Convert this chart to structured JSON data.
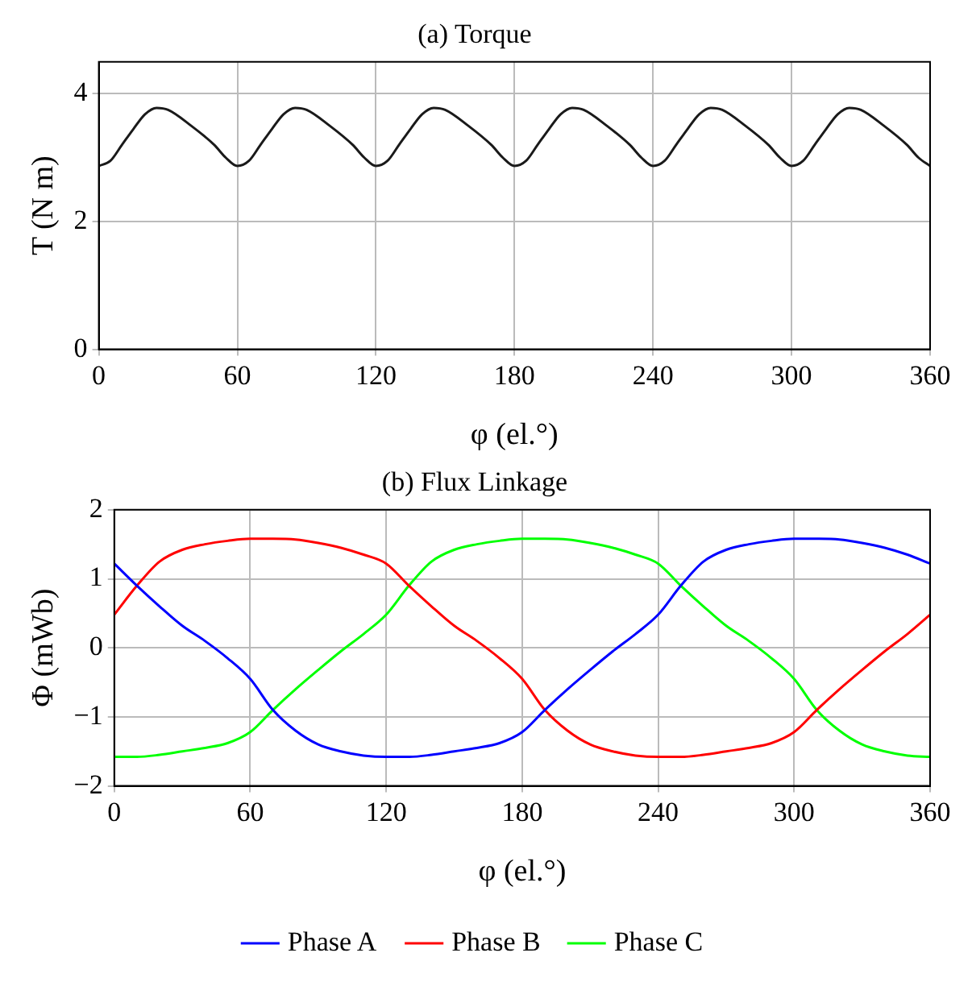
{
  "chart_data": [
    {
      "type": "line",
      "title": "(a) Torque",
      "xlabel": "φ (el.°)",
      "ylabel": "T (N m)",
      "xlim": [
        0,
        360
      ],
      "xticks": [
        0,
        60,
        120,
        180,
        240,
        300,
        360
      ],
      "ylim": [
        0,
        4.5
      ],
      "yticks": [
        0,
        2,
        4
      ],
      "grid": true,
      "legend": false,
      "marker": "none",
      "line_style": "solid",
      "x": [
        0,
        5,
        10,
        15,
        20,
        25,
        30,
        40,
        50,
        55,
        60,
        65,
        70,
        75,
        80,
        85,
        90,
        100,
        110,
        115,
        120,
        125,
        130,
        135,
        140,
        145,
        150,
        160,
        170,
        175,
        180,
        185,
        190,
        195,
        200,
        205,
        210,
        220,
        230,
        235,
        240,
        245,
        250,
        255,
        260,
        265,
        270,
        280,
        290,
        295,
        300,
        305,
        310,
        315,
        320,
        325,
        330,
        340,
        350,
        355,
        360
      ],
      "series": [
        {
          "color": "#1a1a1a",
          "values": [
            2.87,
            2.95,
            3.2,
            3.45,
            3.68,
            3.78,
            3.75,
            3.5,
            3.2,
            3.0,
            2.87,
            2.95,
            3.2,
            3.45,
            3.68,
            3.78,
            3.75,
            3.5,
            3.2,
            3.0,
            2.87,
            2.95,
            3.2,
            3.45,
            3.68,
            3.78,
            3.75,
            3.5,
            3.2,
            3.0,
            2.87,
            2.95,
            3.2,
            3.45,
            3.68,
            3.78,
            3.75,
            3.5,
            3.2,
            3.0,
            2.87,
            2.95,
            3.2,
            3.45,
            3.68,
            3.78,
            3.75,
            3.5,
            3.2,
            3.0,
            2.87,
            2.95,
            3.2,
            3.45,
            3.68,
            3.78,
            3.75,
            3.5,
            3.2,
            3.0,
            2.87
          ]
        }
      ]
    },
    {
      "type": "line",
      "title": "(b) Flux Linkage",
      "xlabel": "φ (el.°)",
      "ylabel": "Φ (mWb)",
      "xlim": [
        0,
        360
      ],
      "xticks": [
        0,
        60,
        120,
        180,
        240,
        300,
        360
      ],
      "ylim": [
        -2,
        2
      ],
      "yticks": [
        {
          "value": -2,
          "label": "−2"
        },
        {
          "value": -1,
          "label": "−1"
        },
        0,
        1,
        2
      ],
      "grid": true,
      "legend": "bottom",
      "marker": "none",
      "line_style": "solid",
      "x": [
        0,
        10,
        20,
        30,
        40,
        50,
        60,
        70,
        80,
        90,
        100,
        110,
        120,
        130,
        140,
        150,
        160,
        170,
        180,
        190,
        200,
        210,
        220,
        230,
        240,
        250,
        260,
        270,
        280,
        290,
        300,
        310,
        320,
        330,
        340,
        350,
        360
      ],
      "series": [
        {
          "name": "Phase A",
          "color": "#0000ff",
          "values": [
            1.22,
            0.9,
            0.6,
            0.32,
            0.1,
            -0.15,
            -0.45,
            -0.9,
            -1.2,
            -1.4,
            -1.5,
            -1.56,
            -1.58,
            -1.58,
            -1.55,
            -1.5,
            -1.45,
            -1.38,
            -1.22,
            -0.9,
            -0.6,
            -0.32,
            -0.05,
            0.2,
            0.48,
            0.9,
            1.25,
            1.42,
            1.5,
            1.55,
            1.58,
            1.58,
            1.57,
            1.52,
            1.45,
            1.35,
            1.22
          ]
        },
        {
          "name": "Phase B",
          "color": "#ff0000",
          "values": [
            0.48,
            0.9,
            1.25,
            1.42,
            1.5,
            1.55,
            1.58,
            1.58,
            1.57,
            1.52,
            1.45,
            1.35,
            1.22,
            0.9,
            0.6,
            0.32,
            0.1,
            -0.15,
            -0.45,
            -0.9,
            -1.2,
            -1.4,
            -1.5,
            -1.56,
            -1.58,
            -1.58,
            -1.55,
            -1.5,
            -1.45,
            -1.38,
            -1.22,
            -0.9,
            -0.6,
            -0.32,
            -0.05,
            0.2,
            0.48
          ]
        },
        {
          "name": "Phase C",
          "color": "#00ff00",
          "values": [
            -1.58,
            -1.58,
            -1.55,
            -1.5,
            -1.45,
            -1.38,
            -1.22,
            -0.9,
            -0.6,
            -0.32,
            -0.05,
            0.2,
            0.48,
            0.9,
            1.25,
            1.42,
            1.5,
            1.55,
            1.58,
            1.58,
            1.57,
            1.52,
            1.45,
            1.35,
            1.22,
            0.9,
            0.6,
            0.32,
            0.1,
            -0.15,
            -0.45,
            -0.9,
            -1.2,
            -1.4,
            -1.5,
            -1.56,
            -1.58
          ]
        }
      ]
    }
  ]
}
